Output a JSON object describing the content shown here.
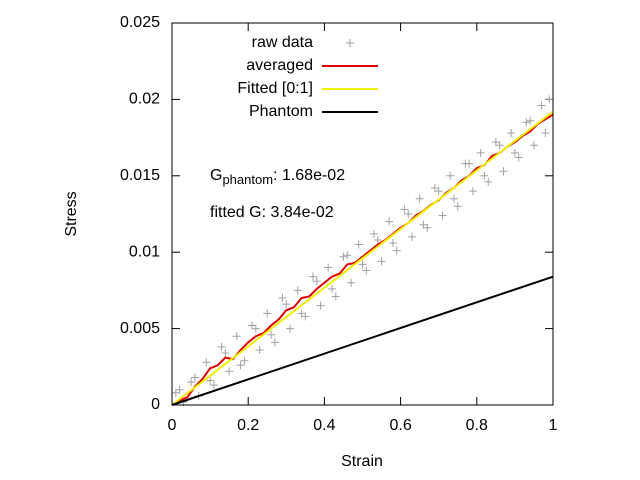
{
  "chart_data": {
    "type": "line",
    "xlabel": "Strain",
    "ylabel": "Stress",
    "xlim": [
      0,
      1
    ],
    "ylim": [
      0,
      0.025
    ],
    "xticks": [
      0,
      0.2,
      0.4,
      0.6,
      0.8,
      1
    ],
    "yticks": [
      0,
      0.005,
      0.01,
      0.015,
      0.02,
      0.025
    ],
    "legend": "top-left",
    "series": [
      {
        "name": "raw data",
        "color": "#a0a0a0",
        "style": "points",
        "x": [
          0.01,
          0.03,
          0.05,
          0.07,
          0.09,
          0.11,
          0.13,
          0.15,
          0.17,
          0.19,
          0.21,
          0.23,
          0.25,
          0.27,
          0.29,
          0.31,
          0.33,
          0.35,
          0.37,
          0.39,
          0.41,
          0.43,
          0.45,
          0.47,
          0.49,
          0.51,
          0.53,
          0.55,
          0.57,
          0.59,
          0.61,
          0.63,
          0.65,
          0.67,
          0.69,
          0.71,
          0.73,
          0.75,
          0.77,
          0.79,
          0.81,
          0.83,
          0.85,
          0.87,
          0.89,
          0.91,
          0.93,
          0.95,
          0.97,
          0.99,
          0.02,
          0.06,
          0.1,
          0.14,
          0.18,
          0.22,
          0.26,
          0.3,
          0.34,
          0.38,
          0.42,
          0.46,
          0.5,
          0.54,
          0.58,
          0.62,
          0.66,
          0.7,
          0.74,
          0.78,
          0.82,
          0.86,
          0.9,
          0.94,
          0.98
        ],
        "values": [
          0.0008,
          0.0002,
          0.0015,
          0.0006,
          0.0028,
          0.0013,
          0.0038,
          0.0022,
          0.0045,
          0.0029,
          0.0052,
          0.0036,
          0.006,
          0.0041,
          0.007,
          0.005,
          0.0075,
          0.0058,
          0.0084,
          0.0065,
          0.009,
          0.0071,
          0.0097,
          0.008,
          0.0105,
          0.0088,
          0.0112,
          0.0094,
          0.012,
          0.0101,
          0.0128,
          0.011,
          0.0135,
          0.0116,
          0.0142,
          0.0124,
          0.015,
          0.013,
          0.0158,
          0.014,
          0.0165,
          0.0146,
          0.0172,
          0.0153,
          0.0178,
          0.0162,
          0.0185,
          0.017,
          0.0196,
          0.02,
          0.001,
          0.0018,
          0.0016,
          0.0034,
          0.0026,
          0.005,
          0.0046,
          0.0066,
          0.006,
          0.0081,
          0.0076,
          0.0098,
          0.0092,
          0.0108,
          0.0106,
          0.0125,
          0.0118,
          0.014,
          0.0135,
          0.0158,
          0.015,
          0.017,
          0.0165,
          0.0186,
          0.0178
        ]
      },
      {
        "name": "averaged",
        "color": "#e00000",
        "style": "lines",
        "x": [
          0,
          0.02,
          0.04,
          0.06,
          0.08,
          0.1,
          0.12,
          0.14,
          0.16,
          0.18,
          0.2,
          0.22,
          0.24,
          0.26,
          0.28,
          0.3,
          0.32,
          0.34,
          0.36,
          0.38,
          0.4,
          0.42,
          0.44,
          0.46,
          0.48,
          0.5,
          0.52,
          0.54,
          0.56,
          0.58,
          0.6,
          0.62,
          0.64,
          0.66,
          0.68,
          0.7,
          0.72,
          0.74,
          0.76,
          0.78,
          0.8,
          0.82,
          0.84,
          0.86,
          0.88,
          0.9,
          0.92,
          0.94,
          0.96,
          0.98,
          1
        ],
        "values": [
          0,
          0.0003,
          0.0005,
          0.0012,
          0.0017,
          0.0024,
          0.0026,
          0.0031,
          0.003,
          0.0036,
          0.0041,
          0.0045,
          0.0047,
          0.0052,
          0.0056,
          0.0062,
          0.0064,
          0.007,
          0.0071,
          0.0076,
          0.008,
          0.0084,
          0.0086,
          0.0092,
          0.0093,
          0.0097,
          0.0101,
          0.0105,
          0.0108,
          0.0112,
          0.0116,
          0.0119,
          0.0124,
          0.0127,
          0.0131,
          0.0134,
          0.0139,
          0.0142,
          0.0147,
          0.015,
          0.0155,
          0.0157,
          0.0163,
          0.0165,
          0.0169,
          0.0172,
          0.0176,
          0.0179,
          0.0184,
          0.0187,
          0.019
        ]
      },
      {
        "name": "Fitted [0:1]",
        "color": "#f0f000",
        "style": "lines",
        "x": [
          0,
          1
        ],
        "values": [
          0,
          0.0192
        ]
      },
      {
        "name": "Phantom",
        "color": "#000000",
        "style": "lines",
        "x": [
          0,
          1
        ],
        "values": [
          0,
          0.0084
        ]
      }
    ],
    "annotations": [
      {
        "text": "G",
        "subscript": "phantom",
        "rest": ": 1.68e-02"
      },
      {
        "text": "fitted G: 3.84e-02"
      }
    ]
  }
}
